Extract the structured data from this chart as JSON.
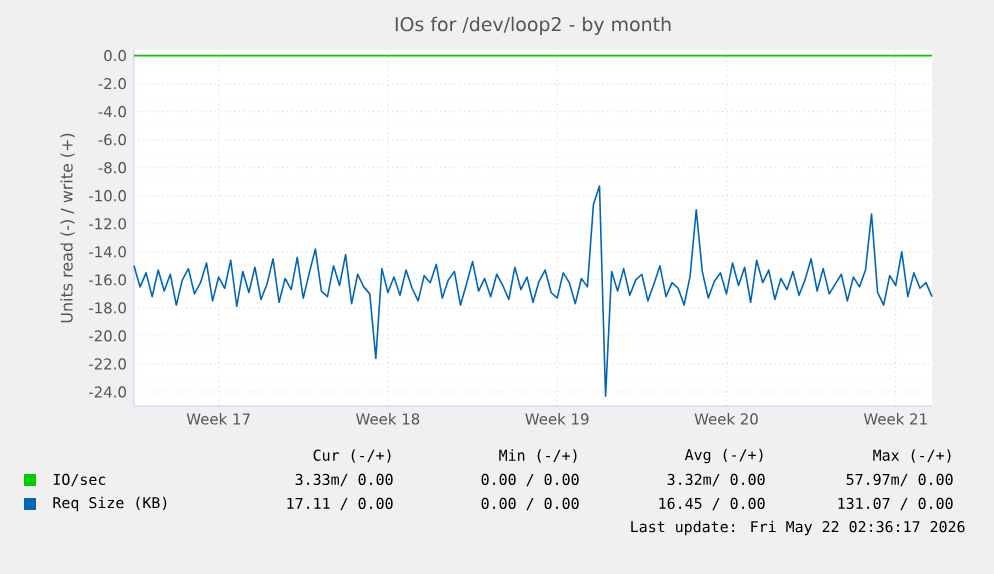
{
  "chart_data": {
    "type": "line",
    "title": "IOs for /dev/loop2 - by month",
    "ylabel": "Units read (-) / write (+)",
    "categories": [
      null,
      null,
      null,
      null,
      null,
      null,
      null,
      null,
      null,
      null,
      null,
      null,
      null,
      null,
      "Week 17",
      null,
      null,
      null,
      null,
      null,
      null,
      null,
      null,
      null,
      null,
      null,
      null,
      null,
      null,
      null,
      null,
      null,
      null,
      null,
      null,
      null,
      null,
      null,
      null,
      null,
      null,
      null,
      "Week 18",
      null,
      null,
      null,
      null,
      null,
      null,
      null,
      null,
      null,
      null,
      null,
      null,
      null,
      null,
      null,
      null,
      null,
      null,
      null,
      null,
      null,
      null,
      null,
      null,
      null,
      null,
      null,
      "Week 19",
      null,
      null,
      null,
      null,
      null,
      null,
      null,
      null,
      null,
      null,
      null,
      null,
      null,
      null,
      null,
      null,
      null,
      null,
      null,
      null,
      null,
      null,
      null,
      null,
      null,
      null,
      null,
      "Week 20",
      null,
      null,
      null,
      null,
      null,
      null,
      null,
      null,
      null,
      null,
      null,
      null,
      null,
      null,
      null,
      null,
      null,
      null,
      null,
      null,
      null,
      null,
      null,
      null,
      null,
      null,
      null,
      "Week 21",
      null,
      null,
      null,
      null,
      null,
      null
    ],
    "ylim": [
      -25,
      0.4
    ],
    "yticks": [
      {
        "value": 0,
        "label": "0.0"
      },
      {
        "value": -2,
        "label": "-2.0"
      },
      {
        "value": -4,
        "label": "-4.0"
      },
      {
        "value": -6,
        "label": "-6.0"
      },
      {
        "value": -8,
        "label": "-8.0"
      },
      {
        "value": -10,
        "label": "-10.0"
      },
      {
        "value": -12,
        "label": "-12.0"
      },
      {
        "value": -14,
        "label": "-14.0"
      },
      {
        "value": -16,
        "label": "-16.0"
      },
      {
        "value": -18,
        "label": "-18.0"
      },
      {
        "value": -20,
        "label": "-20.0"
      },
      {
        "value": -22,
        "label": "-22.0"
      },
      {
        "value": -24,
        "label": "-24.0"
      }
    ],
    "grid": true,
    "legend": "bottom",
    "marker": "none",
    "line_style": "solid",
    "series": [
      {
        "name": "IO/sec",
        "color": "#00cc00",
        "values": [
          0,
          0,
          0,
          0,
          0,
          0,
          0,
          0,
          0,
          0,
          0,
          0,
          0,
          0,
          0,
          0,
          0,
          0,
          0,
          0,
          0,
          0,
          0,
          0,
          0,
          0,
          0,
          0,
          0,
          0,
          0,
          0,
          0,
          0,
          0,
          0,
          0,
          0,
          0,
          0,
          0,
          0,
          0,
          0,
          0,
          0,
          0,
          0,
          0,
          0,
          0,
          0,
          0,
          0,
          0,
          0,
          0,
          0,
          0,
          0,
          0,
          0,
          0,
          0,
          0,
          0,
          0,
          0,
          0,
          0,
          0,
          0,
          0,
          0,
          0,
          0,
          0,
          0,
          0,
          0,
          0,
          0,
          0,
          0,
          0,
          0,
          0,
          0,
          0,
          0,
          0,
          0,
          0,
          0,
          0,
          0,
          0,
          0,
          0,
          0,
          0,
          0,
          0,
          0,
          0,
          0,
          0,
          0,
          0,
          0,
          0,
          0,
          0,
          0,
          0,
          0,
          0,
          0,
          0,
          0,
          0,
          0,
          0,
          0,
          0,
          0,
          0,
          0,
          0,
          0,
          0,
          0,
          0
        ]
      },
      {
        "name": "Req Size (KB)",
        "color": "#0066b3",
        "values": [
          -15.0,
          -16.5,
          -15.5,
          -17.2,
          -15.3,
          -16.8,
          -15.6,
          -17.8,
          -16.0,
          -15.2,
          -17.0,
          -16.2,
          -14.8,
          -17.5,
          -15.8,
          -16.6,
          -14.6,
          -17.9,
          -15.4,
          -16.9,
          -15.1,
          -17.4,
          -16.3,
          -14.5,
          -17.6,
          -15.9,
          -16.7,
          -14.4,
          -17.3,
          -15.5,
          -13.8,
          -16.8,
          -17.2,
          -15.0,
          -16.4,
          -14.2,
          -17.7,
          -15.6,
          -16.5,
          -17.0,
          -21.6,
          -15.2,
          -16.9,
          -15.8,
          -17.1,
          -15.3,
          -16.6,
          -17.5,
          -15.7,
          -16.2,
          -14.9,
          -17.3,
          -16.0,
          -15.4,
          -17.8,
          -16.3,
          -14.7,
          -16.8,
          -15.9,
          -17.2,
          -15.6,
          -16.4,
          -17.4,
          -15.1,
          -16.7,
          -15.8,
          -17.6,
          -16.1,
          -15.3,
          -16.9,
          -17.3,
          -15.5,
          -16.2,
          -17.7,
          -15.9,
          -16.5,
          -10.6,
          -9.3,
          -24.3,
          -15.4,
          -16.8,
          -15.2,
          -17.1,
          -16.0,
          -15.6,
          -17.5,
          -16.3,
          -15.0,
          -17.2,
          -16.2,
          -16.6,
          -17.8,
          -15.7,
          -11.0,
          -15.4,
          -17.3,
          -16.1,
          -15.5,
          -17.0,
          -14.8,
          -16.4,
          -15.1,
          -17.6,
          -14.6,
          -16.2,
          -15.3,
          -17.4,
          -15.9,
          -16.7,
          -15.4,
          -17.1,
          -16.0,
          -14.5,
          -16.8,
          -15.2,
          -17.0,
          -16.3,
          -15.6,
          -17.5,
          -15.8,
          -16.5,
          -15.3,
          -11.3,
          -16.9,
          -17.8,
          -15.7,
          -16.4,
          -14.0,
          -17.2,
          -15.5,
          -16.6,
          -16.2,
          -17.2
        ]
      }
    ],
    "annotations": [
      "Cur (-/+)",
      "Min (-/+)",
      "Avg (-/+)",
      "Max (-/+)",
      "3.33m/ 0.00",
      "0.00 / 0.00",
      "3.32m/ 0.00",
      "57.97m/ 0.00",
      "17.11 / 0.00",
      "0.00 / 0.00",
      "16.45 / 0.00",
      "131.07 / 0.00",
      "Last update: Fri May 22 02:36:17 2026"
    ]
  }
}
